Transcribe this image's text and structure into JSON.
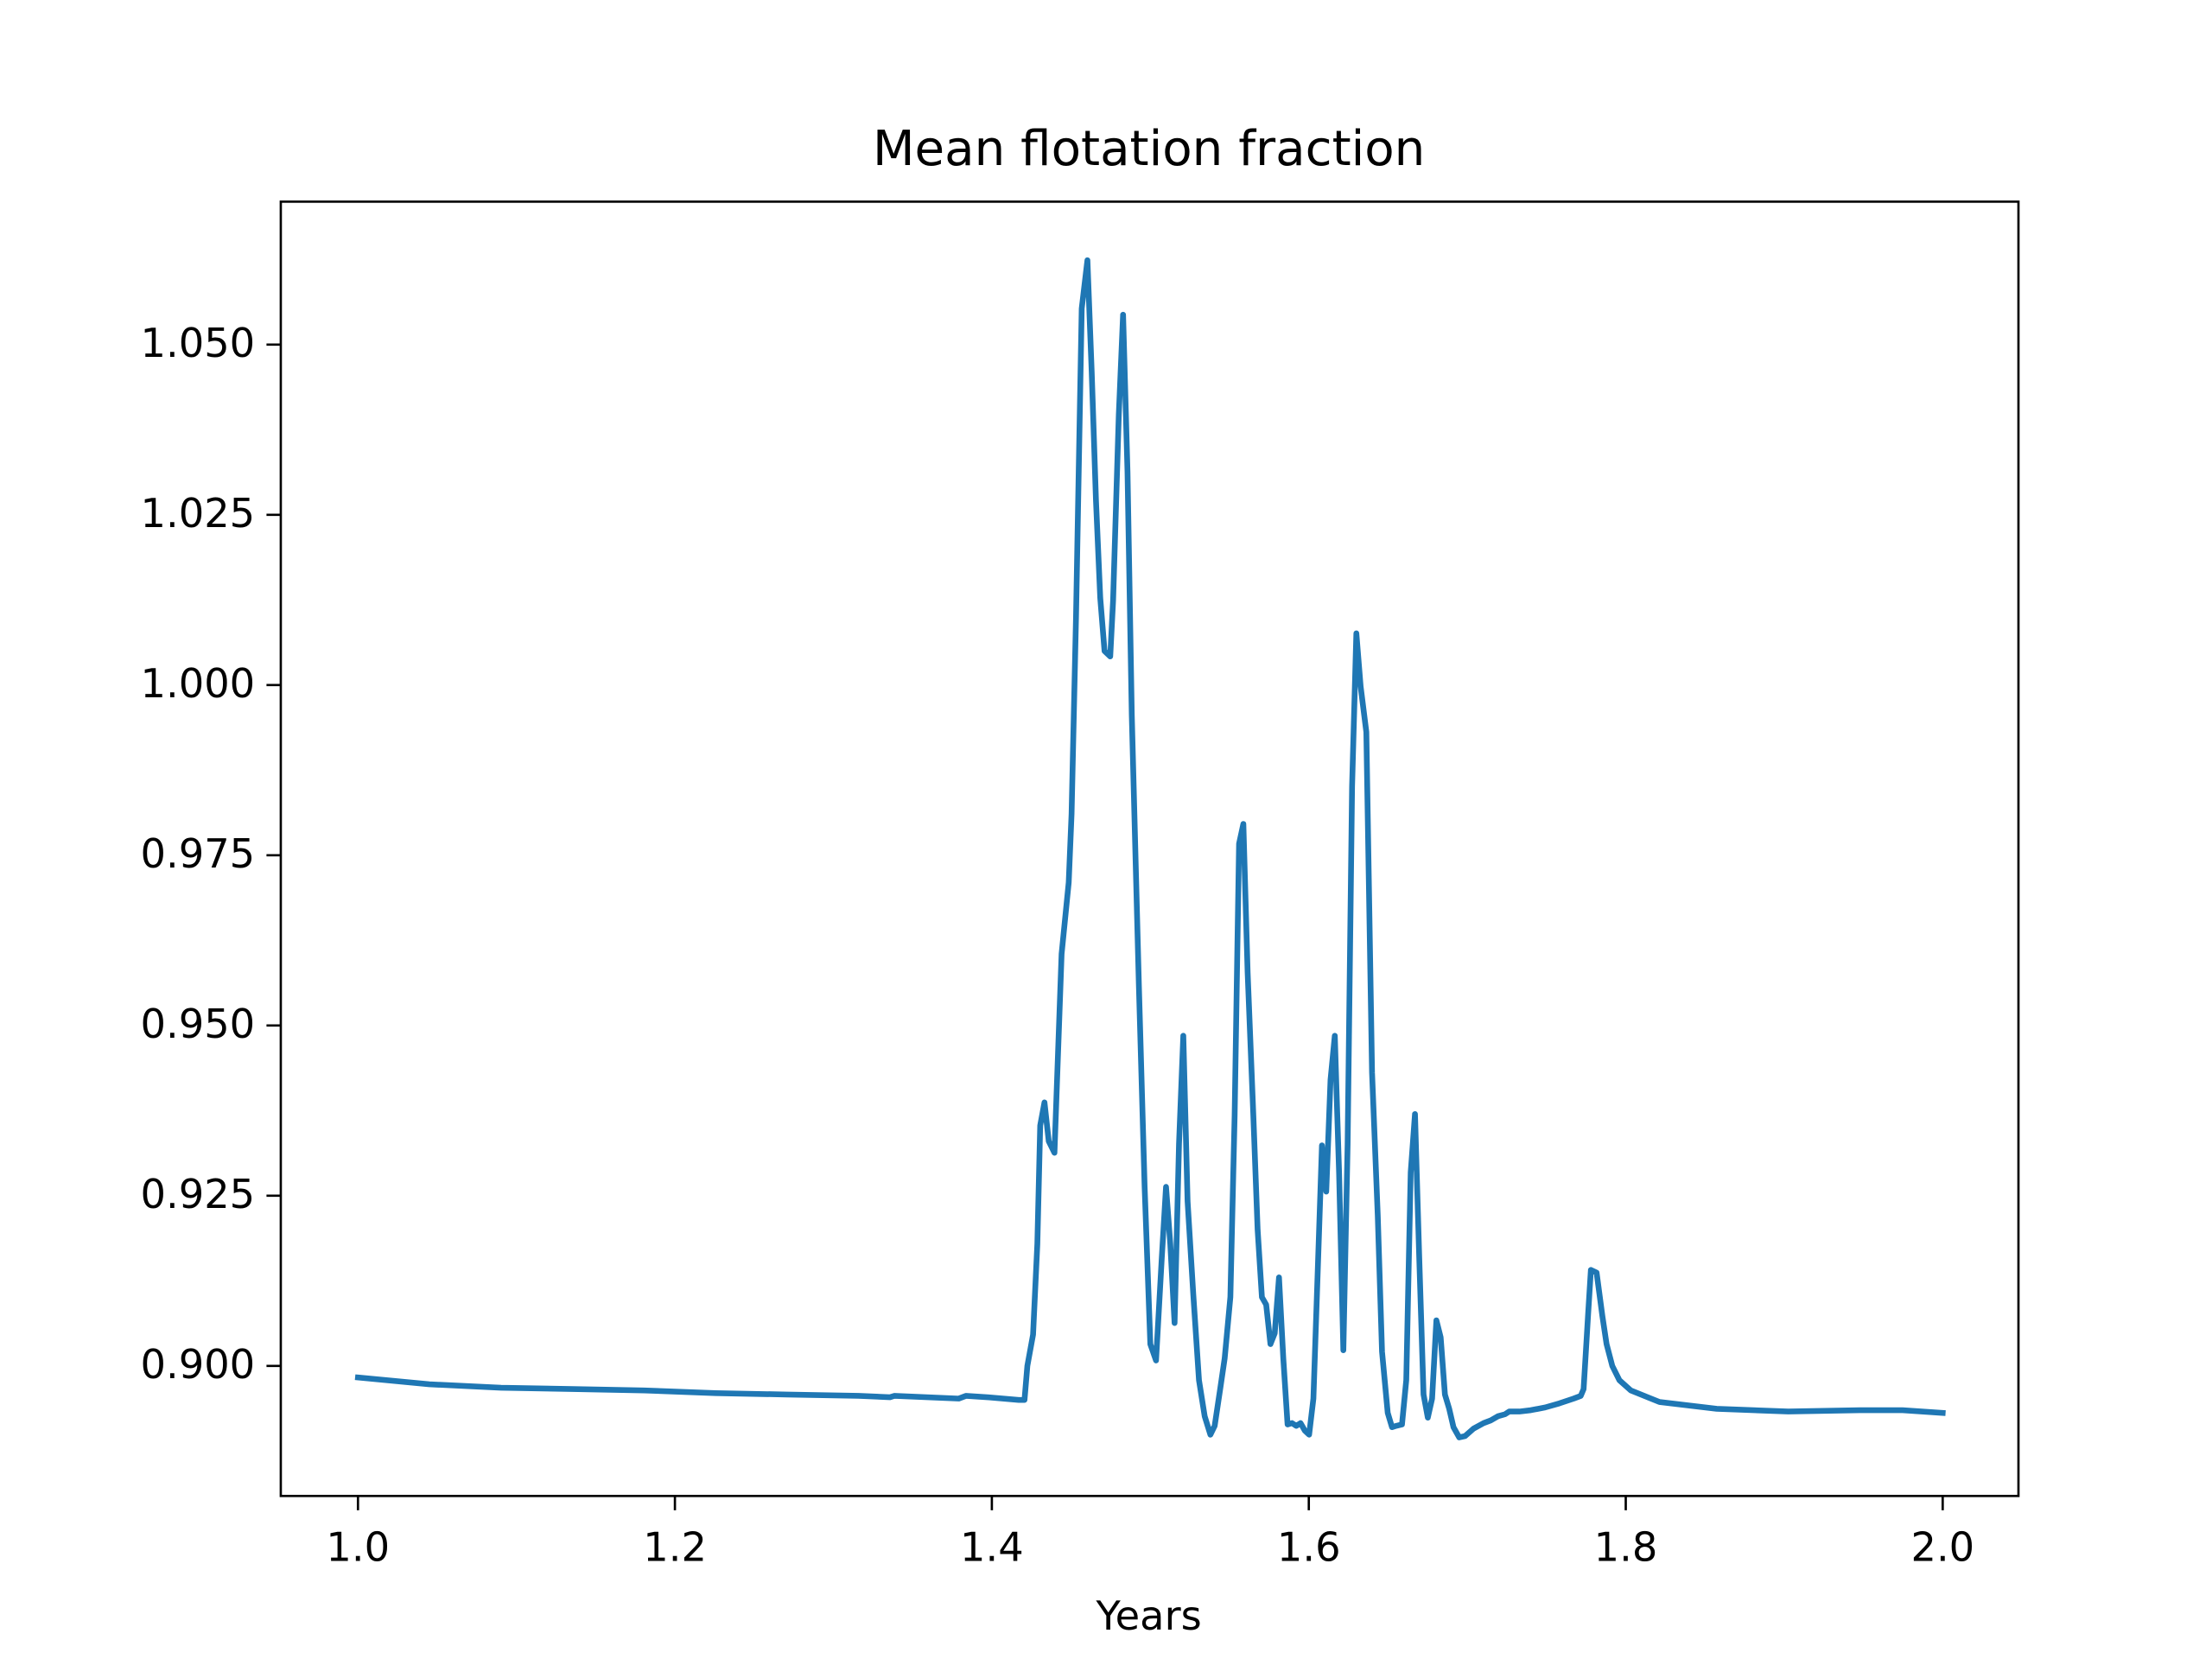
{
  "chart_data": {
    "type": "line",
    "title": "Mean flotation fraction",
    "xlabel": "Years",
    "x": [
      1.0,
      1.0451,
      1.0903,
      1.1354,
      1.1805,
      1.2256,
      1.2708,
      1.3159,
      1.3357,
      1.3384,
      1.3791,
      1.3836,
      1.3971,
      1.417,
      1.4206,
      1.4224,
      1.426,
      1.4287,
      1.4305,
      1.4332,
      1.4359,
      1.4395,
      1.444,
      1.4485,
      1.4503,
      1.4531,
      1.4567,
      1.4603,
      1.463,
      1.4657,
      1.4684,
      1.4711,
      1.4747,
      1.4765,
      1.4801,
      1.4828,
      1.4856,
      1.4883,
      1.4928,
      1.4964,
      1.5,
      1.5036,
      1.5072,
      1.5099,
      1.5126,
      1.5153,
      1.5181,
      1.5208,
      1.5235,
      1.5271,
      1.5307,
      1.5343,
      1.5379,
      1.5406,
      1.5442,
      1.5469,
      1.5505,
      1.5532,
      1.556,
      1.5587,
      1.5614,
      1.565,
      1.5677,
      1.5704,
      1.5731,
      1.5758,
      1.5785,
      1.5812,
      1.5839,
      1.5866,
      1.5894,
      1.5921,
      1.5948,
      1.5975,
      1.6002,
      1.6029,
      1.6056,
      1.6083,
      1.611,
      1.6137,
      1.6164,
      1.6191,
      1.6218,
      1.6245,
      1.6273,
      1.63,
      1.6327,
      1.6363,
      1.6399,
      1.6435,
      1.6462,
      1.6498,
      1.6525,
      1.6552,
      1.6588,
      1.6615,
      1.6643,
      1.667,
      1.6697,
      1.6724,
      1.6751,
      1.6778,
      1.6805,
      1.6832,
      1.6859,
      1.6886,
      1.6913,
      1.6949,
      1.6986,
      1.704,
      1.7103,
      1.7148,
      1.7193,
      1.7238,
      1.7265,
      1.7329,
      1.7401,
      1.7491,
      1.7581,
      1.7671,
      1.7716,
      1.7734,
      1.7762,
      1.778,
      1.7816,
      1.7852,
      1.7879,
      1.7915,
      1.796,
      1.8032,
      1.8213,
      1.8574,
      1.9025,
      1.9477,
      1.9747,
      2.0
    ],
    "values": [
      0.8983,
      0.8973,
      0.8968,
      0.8966,
      0.8964,
      0.896,
      0.8958,
      0.8956,
      0.8954,
      0.8956,
      0.8952,
      0.8956,
      0.8954,
      0.895,
      0.895,
      0.9,
      0.9046,
      0.9179,
      0.9353,
      0.9387,
      0.933,
      0.9313,
      0.9605,
      0.971,
      0.9811,
      1.0099,
      1.0553,
      1.0624,
      1.046,
      1.0271,
      1.0128,
      1.005,
      1.0042,
      1.0124,
      1.0397,
      1.0544,
      1.0313,
      0.9956,
      0.9557,
      0.9263,
      0.9032,
      0.9008,
      0.9158,
      0.9263,
      0.9179,
      0.9063,
      0.9326,
      0.9485,
      0.9242,
      0.9105,
      0.8979,
      0.8926,
      0.8899,
      0.8912,
      0.8968,
      0.9011,
      0.9101,
      0.9368,
      0.9767,
      0.9796,
      0.9578,
      0.9368,
      0.92,
      0.9101,
      0.909,
      0.9032,
      0.9048,
      0.913,
      0.9011,
      0.8914,
      0.8916,
      0.8912,
      0.8916,
      0.8905,
      0.8899,
      0.8952,
      0.9137,
      0.9324,
      0.9256,
      0.942,
      0.9485,
      0.9284,
      0.9023,
      0.9326,
      0.9851,
      1.0076,
      0.9998,
      0.9931,
      0.9431,
      0.9221,
      0.9021,
      0.8931,
      0.891,
      0.8912,
      0.8914,
      0.8979,
      0.9284,
      0.937,
      0.9158,
      0.8958,
      0.8924,
      0.8952,
      0.9067,
      0.9042,
      0.8958,
      0.8937,
      0.891,
      0.8895,
      0.8897,
      0.8908,
      0.8916,
      0.892,
      0.8926,
      0.8929,
      0.8933,
      0.8933,
      0.8935,
      0.8939,
      0.8945,
      0.8952,
      0.8956,
      0.8966,
      0.9074,
      0.9141,
      0.9137,
      0.9074,
      0.9032,
      0.9,
      0.8979,
      0.8964,
      0.8947,
      0.8937,
      0.8933,
      0.8935,
      0.8935,
      0.8931
    ],
    "color": "#1f77b4",
    "xlim": [
      0.9513,
      2.0478
    ],
    "xticks": [
      {
        "value": 1.0,
        "label": "1.0"
      },
      1.2,
      1.4,
      1.6,
      1.8,
      {
        "value": 2.0,
        "label": "2.0"
      }
    ],
    "ylim": [
      0.8809,
      1.071
    ],
    "yticks": [
      {
        "value": 0.9,
        "label": "0.900"
      },
      0.925,
      {
        "value": 0.95,
        "label": "0.950"
      },
      0.975,
      {
        "value": 1.0,
        "label": "1.000"
      },
      1.025,
      {
        "value": 1.05,
        "label": "1.050"
      }
    ],
    "grid": false
  }
}
